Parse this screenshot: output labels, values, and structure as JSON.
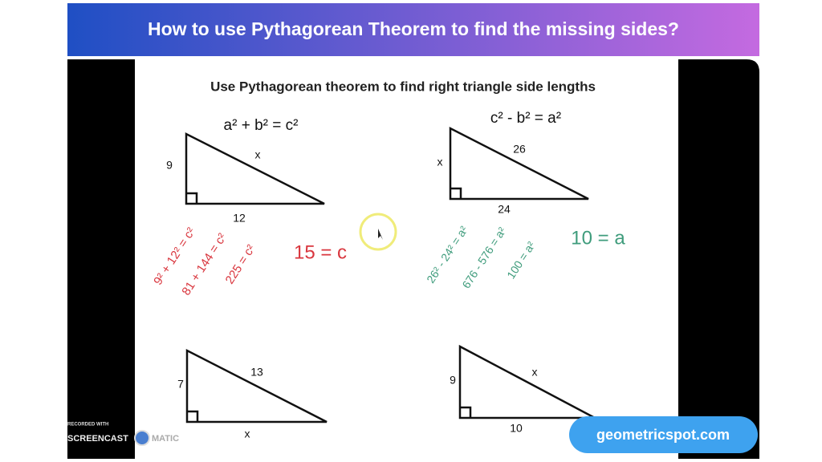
{
  "header": {
    "title": "How to use Pythagorean Theorem to find the missing sides?"
  },
  "slide": {
    "heading": "Use Pythagorean theorem to find right triangle side lengths",
    "example1": {
      "formula": "a² + b² = c²",
      "side_a": "9",
      "hypotenuse": "x",
      "side_b": "12",
      "work": [
        "9² + 12² = c²",
        "81 + 144 = c²",
        "225 = c²"
      ],
      "result": "15 = c"
    },
    "example2": {
      "formula": "c² - b² = a²",
      "side_a": "x",
      "hypotenuse": "26",
      "side_b": "24",
      "work": [
        "26² - 24² = a²",
        "676 - 576 = a²",
        "100 = a²"
      ],
      "result": "10 = a"
    },
    "example3": {
      "side_a": "7",
      "hypotenuse": "13",
      "side_b": "x"
    },
    "example4": {
      "side_a": "9",
      "hypotenuse": "x",
      "side_b": "10"
    }
  },
  "watermark": {
    "recorded": "RECORDED WITH",
    "brand": "SCREENCAST",
    "suffix": "MATIC"
  },
  "badge": {
    "text": "geometricspot.com"
  }
}
